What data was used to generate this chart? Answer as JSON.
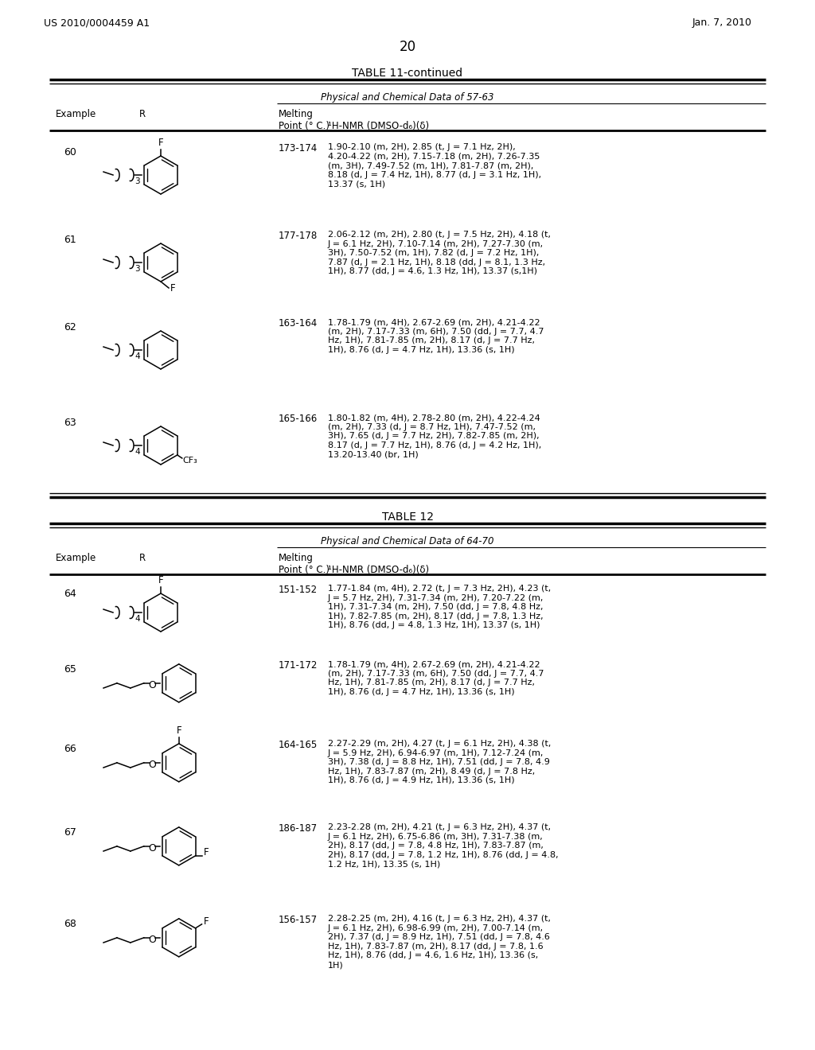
{
  "background_color": "#ffffff",
  "page_header_left": "US 2010/0004459 A1",
  "page_header_right": "Jan. 7, 2010",
  "page_number": "20",
  "table11_title": "TABLE 11-continued",
  "table11_subtitle": "Physical and Chemical Data of 57-63",
  "table12_title": "TABLE 12",
  "table12_subtitle": "Physical and Chemical Data of 64-70",
  "col_example": "Example",
  "col_R": "R",
  "col_mp_a": "Melting",
  "col_mp_b": "Point (° C.)",
  "col_nmr": "¹H-NMR (DMSO-d₆)(δ)",
  "rows_table11": [
    {
      "example": "60",
      "mp": "173-174",
      "nmr": "1.90-2.10 (m, 2H), 2.85 (t, J = 7.1 Hz, 2H),\n4.20-4.22 (m, 2H), 7.15-7.18 (m, 2H), 7.26-7.35\n(m, 3H), 7.49-7.52 (m, 1H), 7.81-7.87 (m, 2H),\n8.18 (d, J = 7.4 Hz, 1H), 8.77 (d, J = 3.1 Hz, 1H),\n13.37 (s, 1H)",
      "chain_n": "3",
      "F_pos": "ortho_top",
      "has_O": false,
      "CF3": false,
      "plain": false
    },
    {
      "example": "61",
      "mp": "177-178",
      "nmr": "2.06-2.12 (m, 2H), 2.80 (t, J = 7.5 Hz, 2H), 4.18 (t,\nJ = 6.1 Hz, 2H), 7.10-7.14 (m, 2H), 7.27-7.30 (m,\n3H), 7.50-7.52 (m, 1H), 7.82 (d, J = 7.2 Hz, 1H),\n7.87 (d, J = 2.1 Hz, 1H), 8.18 (dd, J = 8.1, 1.3 Hz,\n1H), 8.77 (dd, J = 4.6, 1.3 Hz, 1H), 13.37 (s,1H)",
      "chain_n": "3",
      "F_pos": "para_bottom",
      "has_O": false,
      "CF3": false,
      "plain": false
    },
    {
      "example": "62",
      "mp": "163-164",
      "nmr": "1.78-1.79 (m, 4H), 2.67-2.69 (m, 2H), 4.21-4.22\n(m, 2H), 7.17-7.33 (m, 6H), 7.50 (dd, J = 7.7, 4.7\nHz, 1H), 7.81-7.85 (m, 2H), 8.17 (d, J = 7.7 Hz,\n1H), 8.76 (d, J = 4.7 Hz, 1H), 13.36 (s, 1H)",
      "chain_n": "4",
      "F_pos": "none",
      "has_O": false,
      "CF3": false,
      "plain": true
    },
    {
      "example": "63",
      "mp": "165-166",
      "nmr": "1.80-1.82 (m, 4H), 2.78-2.80 (m, 2H), 4.22-4.24\n(m, 2H), 7.33 (d, J = 8.7 Hz, 1H), 7.47-7.52 (m,\n3H), 7.65 (d, J = 7.7 Hz, 2H), 7.82-7.85 (m, 2H),\n8.17 (d, J = 7.7 Hz, 1H), 8.76 (d, J = 4.2 Hz, 1H),\n13.20-13.40 (br, 1H)",
      "chain_n": "4",
      "F_pos": "none",
      "has_O": false,
      "CF3": true,
      "plain": false
    }
  ],
  "rows_table12": [
    {
      "example": "64",
      "mp": "151-152",
      "nmr": "1.77-1.84 (m, 4H), 2.72 (t, J = 7.3 Hz, 2H), 4.23 (t,\nJ = 5.7 Hz, 2H), 7.31-7.34 (m, 2H), 7.20-7.22 (m,\n1H), 7.31-7.34 (m, 2H), 7.50 (dd, J = 7.8, 4.8 Hz,\n1H), 7.82-7.85 (m, 2H), 8.17 (dd, J = 7.8, 1.3 Hz,\n1H), 8.76 (dd, J = 4.8, 1.3 Hz, 1H), 13.37 (s, 1H)",
      "chain_n": "4",
      "F_pos": "ortho_top",
      "has_O": false,
      "CF3": false,
      "plain": false
    },
    {
      "example": "65",
      "mp": "171-172",
      "nmr": "1.78-1.79 (m, 4H), 2.67-2.69 (m, 2H), 4.21-4.22\n(m, 2H), 7.17-7.33 (m, 6H), 7.50 (dd, J = 7.7, 4.7\nHz, 1H), 7.81-7.85 (m, 2H), 8.17 (d, J = 7.7 Hz,\n1H), 8.76 (d, J = 4.7 Hz, 1H), 13.36 (s, 1H)",
      "chain_n": "4",
      "F_pos": "none",
      "has_O": true,
      "CF3": false,
      "plain": true
    },
    {
      "example": "66",
      "mp": "164-165",
      "nmr": "2.27-2.29 (m, 2H), 4.27 (t, J = 6.1 Hz, 2H), 4.38 (t,\nJ = 5.9 Hz, 2H), 6.94-6.97 (m, 1H), 7.12-7.24 (m,\n3H), 7.38 (d, J = 8.8 Hz, 1H), 7.51 (dd, J = 7.8, 4.9\nHz, 1H), 7.83-7.87 (m, 2H), 8.49 (d, J = 7.8 Hz,\n1H), 8.76 (d, J = 4.9 Hz, 1H), 13.36 (s, 1H)",
      "chain_n": "4",
      "F_pos": "ortho_top",
      "has_O": true,
      "CF3": false,
      "plain": false
    },
    {
      "example": "67",
      "mp": "186-187",
      "nmr": "2.23-2.28 (m, 2H), 4.21 (t, J = 6.3 Hz, 2H), 4.37 (t,\nJ = 6.1 Hz, 2H), 6.75-6.86 (m, 3H), 7.31-7.38 (m,\n2H), 8.17 (dd, J = 7.8, 4.8 Hz, 1H), 7.83-7.87 (m,\n2H), 8.17 (dd, J = 7.8, 1.2 Hz, 1H), 8.76 (dd, J = 4.8,\n1.2 Hz, 1H), 13.35 (s, 1H)",
      "chain_n": "4",
      "F_pos": "meta_right",
      "has_O": true,
      "CF3": false,
      "plain": false
    },
    {
      "example": "68",
      "mp": "156-157",
      "nmr": "2.28-2.25 (m, 2H), 4.16 (t, J = 6.3 Hz, 2H), 4.37 (t,\nJ = 6.1 Hz, 2H), 6.98-6.99 (m, 2H), 7.00-7.14 (m,\n2H), 7.37 (d, J = 8.9 Hz, 1H), 7.51 (dd, J = 7.8, 4.6\nHz, 1H), 7.83-7.87 (m, 2H), 8.17 (dd, J = 7.8, 1.6\nHz, 1H), 8.76 (dd, J = 4.6, 1.6 Hz, 1H), 13.36 (s,\n1H)",
      "chain_n": "4",
      "F_pos": "para_right",
      "has_O": true,
      "CF3": false,
      "plain": false
    }
  ]
}
